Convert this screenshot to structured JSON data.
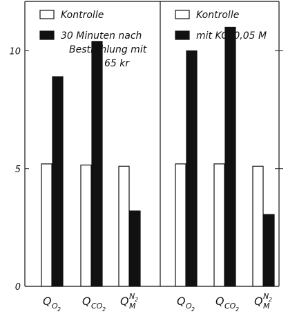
{
  "chart_data": [
    {
      "type": "bar",
      "categories": [
        "Q_O2",
        "Q_CO2",
        "Q_M^N2"
      ],
      "category_labels": [
        {
          "main": "Q",
          "sub": "O",
          "subsub": "2"
        },
        {
          "main": "Q",
          "sub": "CO",
          "subsub": "2"
        },
        {
          "main": "Q",
          "sub": "M",
          "sup": "N",
          "supsub": "2"
        }
      ],
      "series": [
        {
          "name": "Kontrolle",
          "values": [
            5.2,
            5.15,
            5.1
          ],
          "fill": "#ffffff"
        },
        {
          "name": "30 Minuten nach Bestrahlung mit 65 kr",
          "legend_lines": [
            "30 Minuten nach",
            "Bestrahlung mit",
            "65 kr"
          ],
          "values": [
            8.9,
            10.4,
            3.2
          ],
          "fill": "#111111"
        }
      ],
      "ylim": [
        0,
        12.1
      ],
      "yticks": [
        {
          "value": 0,
          "label": "0"
        },
        {
          "value": 5,
          "label": "5"
        },
        {
          "value": 10,
          "label": "10"
        }
      ],
      "legend": "top"
    },
    {
      "type": "bar",
      "categories": [
        "Q_O2",
        "Q_CO2",
        "Q_M^N2"
      ],
      "category_labels": [
        {
          "main": "Q",
          "sub": "O",
          "subsub": "2"
        },
        {
          "main": "Q",
          "sub": "CO",
          "subsub": "2"
        },
        {
          "main": "Q",
          "sub": "M",
          "sup": "N",
          "supsub": "2"
        }
      ],
      "series": [
        {
          "name": "Kontrolle",
          "values": [
            5.2,
            5.2,
            5.1
          ],
          "fill": "#ffffff"
        },
        {
          "name": "mit KCl 0,05 M",
          "legend_lines": [
            "mit KCl 0,05 M"
          ],
          "values": [
            10.0,
            11.0,
            3.05
          ],
          "fill": "#111111"
        }
      ],
      "ylim": [
        0,
        12.1
      ],
      "yticks": [
        {
          "value": 0,
          "label": ""
        },
        {
          "value": 5,
          "label": ""
        },
        {
          "value": 10,
          "label": ""
        }
      ],
      "legend": "top"
    }
  ]
}
